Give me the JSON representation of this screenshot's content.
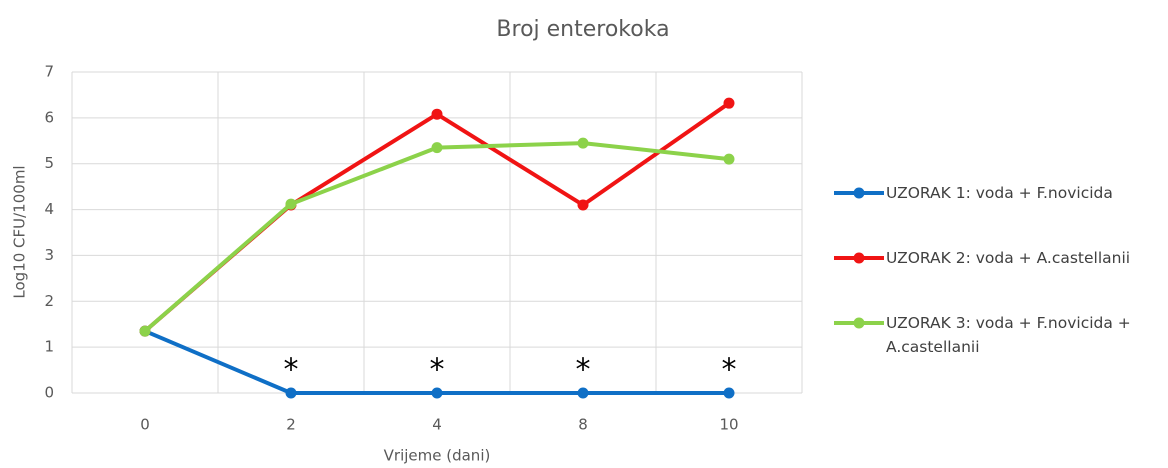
{
  "chart_data": {
    "type": "line",
    "title": "Broj enterokoka",
    "x_label": "Vrijeme (dani)",
    "y_label": "Log10 CFU/100ml",
    "categories": [
      "0",
      "2",
      "4",
      "8",
      "10"
    ],
    "series": [
      {
        "name": "UZORAK 1: voda + F.novicida",
        "color": "#0f6fc6",
        "values": [
          1.35,
          0,
          0,
          0,
          0
        ]
      },
      {
        "name": "UZORAK 2: voda + A.castellanii",
        "color": "#f01414",
        "values": [
          1.35,
          4.1,
          6.08,
          4.1,
          6.32
        ]
      },
      {
        "name": "UZORAK 3: voda + F.novicida + A.castellanii",
        "color": "#8cd24a",
        "values": [
          1.35,
          4.12,
          5.35,
          5.45,
          5.1
        ]
      }
    ],
    "annotations": [
      "*",
      "*",
      "*",
      "*"
    ],
    "ylim": [
      0,
      7
    ],
    "yticks": [
      0,
      1,
      2,
      3,
      4,
      5,
      6,
      7
    ],
    "grid": true,
    "legend": "right"
  }
}
